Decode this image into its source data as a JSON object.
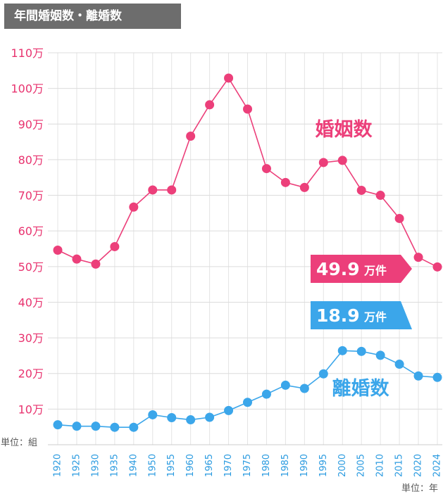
{
  "title": "年間婚姻数・離婚数",
  "unit_y": "単位：組",
  "unit_x": "単位：年",
  "colors": {
    "marriage": "#ec3f7a",
    "divorce": "#3ba6ea",
    "axis_text_y": "#e8336f",
    "axis_text_x": "#2b9be0",
    "grid": "#dddddd",
    "title_bg": "#6d6d6d"
  },
  "chart_data": {
    "type": "line",
    "title": "年間婚姻数・離婚数",
    "x": [
      "1920",
      "1925",
      "1930",
      "1935",
      "1940",
      "1950",
      "1955",
      "1960",
      "1965",
      "1970",
      "1975",
      "1980",
      "1985",
      "1990",
      "1995",
      "2000",
      "2005",
      "2010",
      "2015",
      "2020",
      "2024"
    ],
    "y_tick_labels": [
      "10万",
      "20万",
      "30万",
      "40万",
      "50万",
      "60万",
      "70万",
      "80万",
      "90万",
      "100万",
      "110万"
    ],
    "ylim": [
      0,
      110
    ],
    "grid": true,
    "series": [
      {
        "name": "婚姻数",
        "color": "#ec3f7a",
        "values": [
          54.6,
          52.1,
          50.7,
          55.6,
          66.7,
          71.5,
          71.5,
          86.6,
          95.4,
          102.9,
          94.2,
          77.5,
          73.6,
          72.2,
          79.2,
          79.8,
          71.4,
          70.0,
          63.5,
          52.6,
          49.9
        ]
      },
      {
        "name": "離婚数",
        "color": "#3ba6ea",
        "values": [
          5.6,
          5.2,
          5.2,
          4.9,
          4.9,
          8.4,
          7.6,
          7.0,
          7.7,
          9.6,
          11.9,
          14.2,
          16.7,
          15.8,
          19.9,
          26.4,
          26.2,
          25.1,
          22.6,
          19.3,
          18.9
        ]
      }
    ],
    "annotations": [
      {
        "series": "婚姻数",
        "value": "49.9",
        "unit": "万件"
      },
      {
        "series": "離婚数",
        "value": "18.9",
        "unit": "万件"
      }
    ]
  }
}
